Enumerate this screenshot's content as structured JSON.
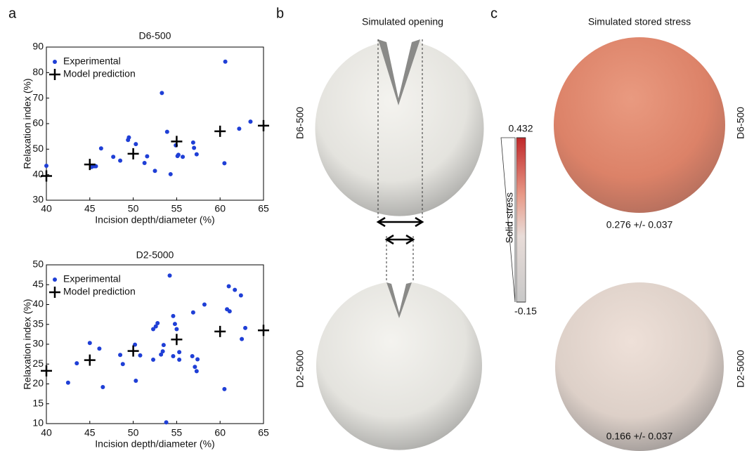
{
  "chart_data": [
    {
      "type": "scatter",
      "title": "D6-500",
      "x_label": "Incision depth/diameter (%)",
      "y_label": "Relaxation index (%)",
      "xlim": [
        40,
        65
      ],
      "ylim": [
        30,
        90
      ],
      "xticks": [
        40,
        45,
        50,
        55,
        60,
        65
      ],
      "yticks": [
        30,
        40,
        50,
        60,
        70,
        80,
        90
      ],
      "legend": "upper left",
      "series": [
        {
          "name": "Experimental",
          "color": "#1f3fd6",
          "marker": "dot",
          "x": [
            40,
            45.2,
            45.5,
            45.7,
            46.3,
            47.7,
            48.5,
            49.4,
            49.5,
            50.3,
            51.3,
            51.6,
            52.5,
            53.3,
            53.9,
            54.3,
            54.9,
            55.1,
            55.2,
            55.7,
            56.9,
            57.0,
            57.3,
            60.5,
            60.6,
            62.2,
            63.5
          ],
          "values": [
            43.5,
            43.0,
            43.3,
            43.3,
            50.3,
            47.0,
            45.5,
            53.6,
            54.6,
            52.0,
            44.6,
            47.2,
            41.5,
            72.0,
            56.8,
            40.2,
            51.5,
            47.3,
            47.8,
            47.0,
            52.6,
            50.5,
            48.0,
            44.5,
            84.3,
            58.0,
            60.8
          ]
        },
        {
          "name": "Model prediction",
          "color": "#000000",
          "marker": "cross",
          "x": [
            40,
            45,
            50,
            55,
            60,
            65
          ],
          "values": [
            39.5,
            44.0,
            48.2,
            53.0,
            57.0,
            59.2
          ]
        }
      ]
    },
    {
      "type": "scatter",
      "title": "D2-5000",
      "x_label": "Incision depth/diameter (%)",
      "y_label": "Relaxation index (%)",
      "xlim": [
        40,
        65
      ],
      "ylim": [
        10,
        50
      ],
      "xticks": [
        40,
        45,
        50,
        55,
        60,
        65
      ],
      "yticks": [
        10,
        15,
        20,
        25,
        30,
        35,
        40,
        45,
        50
      ],
      "legend": "upper left",
      "series": [
        {
          "name": "Experimental",
          "color": "#1f3fd6",
          "marker": "dot",
          "x": [
            42.5,
            43.5,
            45,
            46.1,
            46.5,
            48.5,
            48.8,
            50.2,
            50.3,
            50.8,
            52.3,
            52.3,
            52.6,
            52.8,
            53.2,
            53.4,
            53.5,
            53.8,
            54.2,
            54.6,
            54.6,
            54.8,
            55.0,
            55.3,
            55.3,
            56.8,
            56.9,
            57.1,
            57.3,
            57.4,
            58.2,
            60.5,
            60.8,
            61.0,
            61.1,
            61.7,
            62.4,
            62.5,
            62.9
          ],
          "values": [
            20.3,
            25.2,
            30.3,
            28.9,
            19.2,
            27.3,
            25.0,
            29.9,
            20.8,
            27.2,
            26.1,
            33.8,
            34.5,
            35.3,
            27.4,
            28.2,
            29.8,
            10.3,
            47.3,
            27.0,
            37.1,
            35.1,
            33.8,
            28.0,
            26.1,
            27.0,
            38.0,
            24.3,
            23.2,
            26.2,
            40.0,
            18.7,
            38.8,
            44.6,
            38.3,
            43.7,
            42.3,
            31.3,
            34.1
          ]
        },
        {
          "name": "Model prediction",
          "color": "#000000",
          "marker": "cross",
          "x": [
            40,
            45,
            50,
            55,
            60,
            65
          ],
          "values": [
            23.3,
            26.0,
            28.3,
            31.2,
            33.2,
            33.5
          ]
        }
      ]
    }
  ],
  "panel_labels": [
    "a",
    "b",
    "c"
  ],
  "panel_b": {
    "title": "Simulated opening",
    "rows": [
      "D6-500",
      "D2-5000"
    ]
  },
  "panel_c": {
    "title": "Simulated stored stress",
    "rows": [
      "D6-500",
      "D2-5000"
    ],
    "colorbar": {
      "label": "Solid stress",
      "ticks": [
        0.432,
        -0.15
      ]
    },
    "stress": [
      "0.276 +/- 0.037",
      "0.166 +/- 0.037"
    ]
  }
}
